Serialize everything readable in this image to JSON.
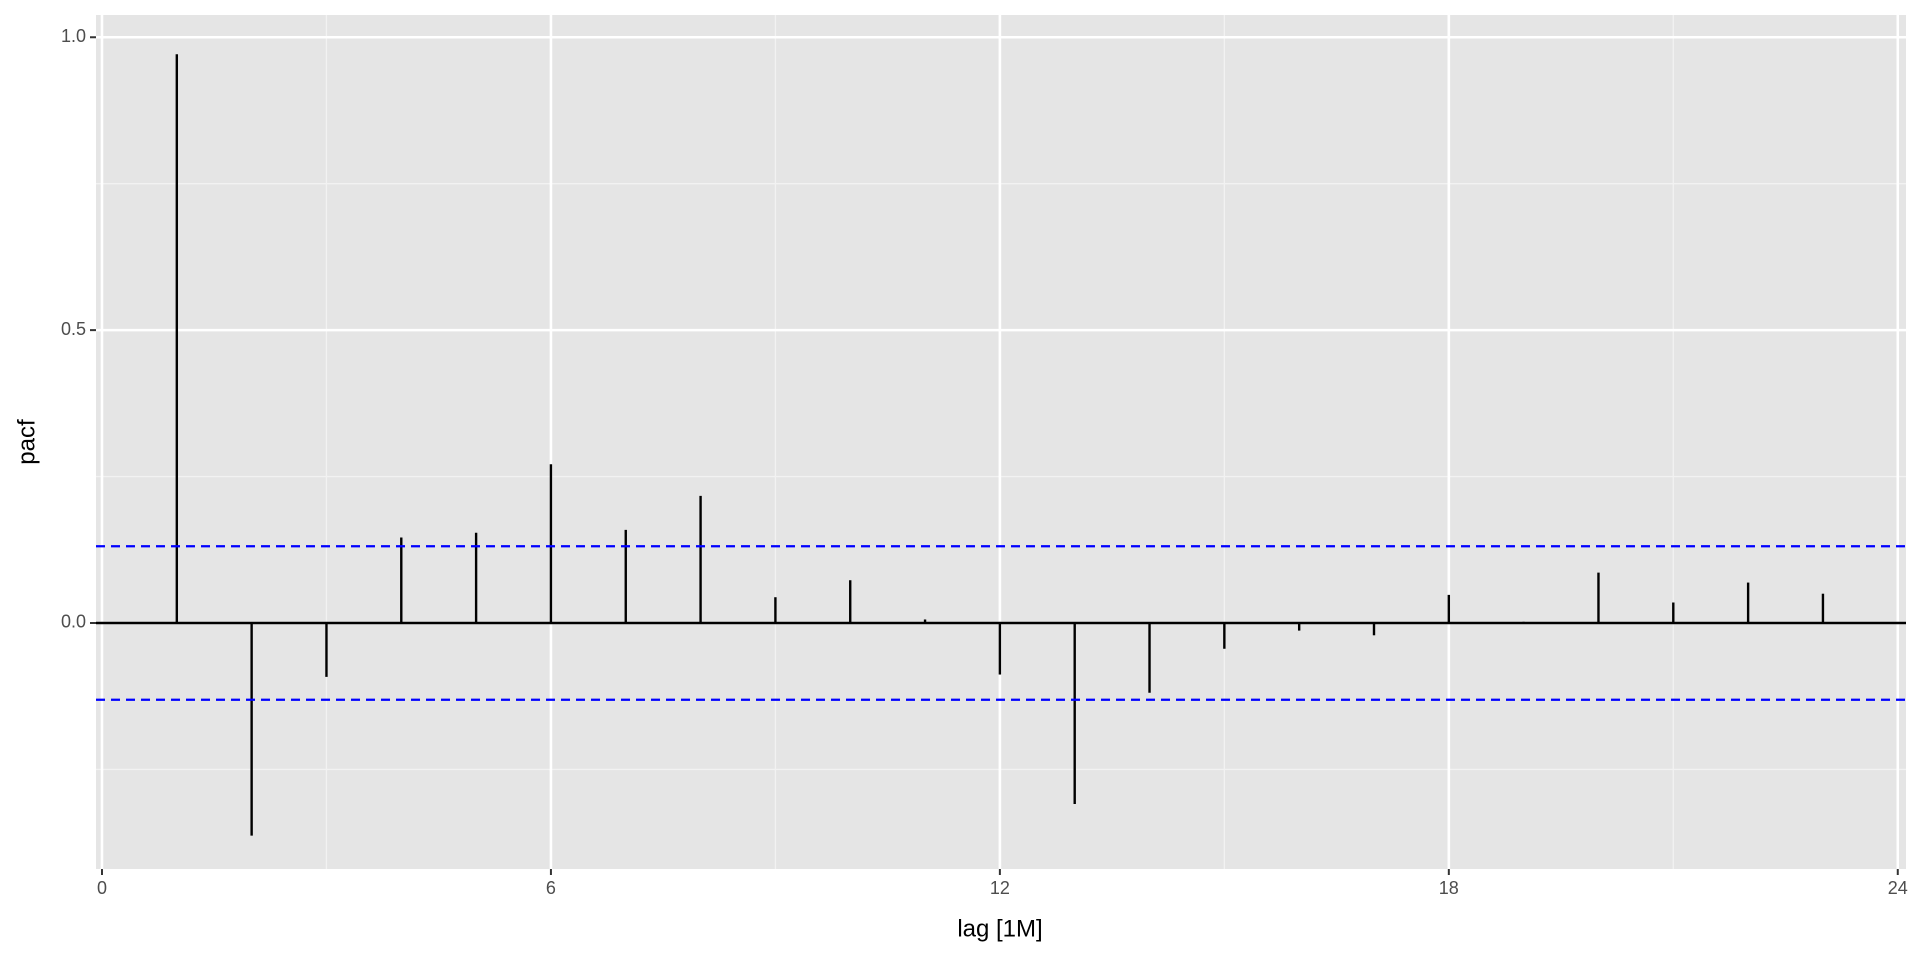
{
  "chart_data": {
    "type": "pacf",
    "x_label": "lag [1M]",
    "y_label": "pacf",
    "x": [
      1,
      2,
      3,
      4,
      5,
      6,
      7,
      8,
      9,
      10,
      11,
      12,
      13,
      14,
      15,
      16,
      17,
      18,
      19,
      20,
      21,
      22,
      23
    ],
    "series": [
      {
        "name": "pacf",
        "color": "#000000",
        "values": [
          0.971,
          -0.363,
          -0.092,
          0.146,
          0.154,
          0.271,
          0.159,
          0.217,
          0.044,
          0.073,
          0.006,
          -0.088,
          -0.309,
          -0.119,
          -0.044,
          -0.013,
          -0.021,
          0.048,
          0.002,
          0.086,
          0.035,
          0.069,
          0.05
        ]
      }
    ],
    "ci": [
      -0.131,
      0.131
    ],
    "ci_color": "#0000ff",
    "xlim": [
      -0.08,
      24.11
    ],
    "ylim": [
      -0.42,
      1.038
    ],
    "xticks": [
      0,
      6,
      12,
      18,
      24
    ],
    "yticks": [
      {
        "value": 0,
        "label": "0.0"
      },
      0.5,
      {
        "value": 1,
        "label": "1.0"
      }
    ],
    "x_minor_ticks": [
      3,
      9,
      15,
      21
    ],
    "y_minor_ticks": [
      -0.25,
      0.25,
      0.75
    ],
    "grid": true
  }
}
